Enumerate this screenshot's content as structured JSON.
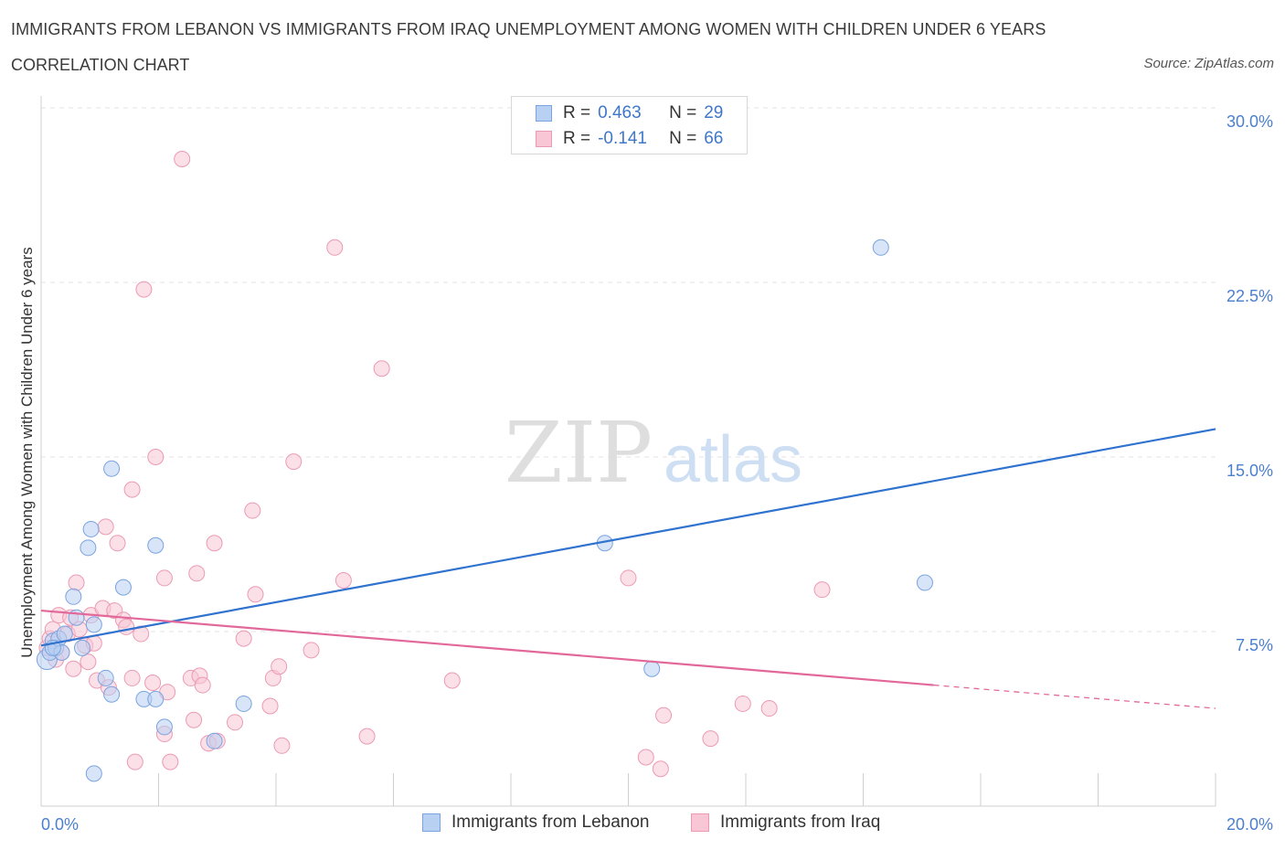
{
  "header": {
    "title": "IMMIGRANTS FROM LEBANON VS IMMIGRANTS FROM IRAQ UNEMPLOYMENT AMONG WOMEN WITH CHILDREN UNDER 6 YEARS",
    "subtitle": "CORRELATION CHART",
    "source": "Source: ZipAtlas.com"
  },
  "legend": {
    "rows": [
      {
        "r_label": "R = ",
        "r_value": "0.463",
        "n_label": "N = ",
        "n_value": "29"
      },
      {
        "r_label": "R = ",
        "r_value": "-0.141",
        "n_label": "N = ",
        "n_value": "66"
      }
    ],
    "bottom": [
      "Immigrants from Lebanon",
      "Immigrants from Iraq"
    ]
  },
  "watermark": {
    "zip": "ZIP",
    "atlas": "atlas"
  },
  "colors": {
    "lebanon_fill": "#b8d0f2",
    "lebanon_stroke": "#7aa3df",
    "lebanon_line": "#2f72cf",
    "iraq_fill": "#f8c6d5",
    "iraq_stroke": "#ec9ab3",
    "iraq_line": "#e3689a",
    "tick_blue": "#4b7fcf",
    "grid": "#e3e3e3"
  },
  "chart_data": {
    "type": "scatter",
    "title": "IMMIGRANTS FROM LEBANON VS IMMIGRANTS FROM IRAQ UNEMPLOYMENT AMONG WOMEN WITH CHILDREN UNDER 6 YEARS",
    "xlabel": "",
    "ylabel": "Unemployment Among Women with Children Under 6 years",
    "xlim": [
      0,
      20
    ],
    "ylim": [
      0,
      30
    ],
    "x_tick_labels": [
      "0.0%",
      "20.0%"
    ],
    "y_ticks": [
      7.5,
      15.0,
      22.5,
      30.0
    ],
    "y_tick_labels": [
      "7.5%",
      "15.0%",
      "22.5%",
      "30.0%"
    ],
    "series": [
      {
        "name": "Immigrants from Lebanon",
        "R": 0.463,
        "N": 29,
        "trend": {
          "x": [
            0,
            20
          ],
          "y": [
            6.9,
            16.2
          ]
        },
        "points": [
          [
            0.1,
            6.3
          ],
          [
            0.15,
            6.6
          ],
          [
            0.2,
            7.1
          ],
          [
            0.25,
            6.8
          ],
          [
            0.3,
            7.2
          ],
          [
            0.35,
            6.6
          ],
          [
            0.4,
            7.4
          ],
          [
            0.55,
            9.0
          ],
          [
            0.6,
            8.1
          ],
          [
            0.7,
            6.8
          ],
          [
            0.8,
            11.1
          ],
          [
            0.85,
            11.9
          ],
          [
            0.9,
            7.8
          ],
          [
            0.9,
            1.4
          ],
          [
            1.1,
            5.5
          ],
          [
            1.2,
            14.5
          ],
          [
            1.2,
            4.8
          ],
          [
            1.4,
            9.4
          ],
          [
            1.75,
            4.6
          ],
          [
            1.95,
            4.6
          ],
          [
            1.95,
            11.2
          ],
          [
            2.1,
            3.4
          ],
          [
            2.95,
            2.8
          ],
          [
            3.45,
            4.4
          ],
          [
            9.6,
            11.3
          ],
          [
            10.4,
            5.9
          ],
          [
            14.3,
            24.0
          ],
          [
            15.05,
            9.6
          ],
          [
            0.2,
            6.8
          ]
        ]
      },
      {
        "name": "Immigrants from Iraq",
        "R": -0.141,
        "N": 66,
        "trend": {
          "x": [
            0,
            15.2
          ],
          "y": [
            8.4,
            5.2
          ]
        },
        "trend_dashed": {
          "x": [
            15.2,
            20
          ],
          "y": [
            5.2,
            4.2
          ]
        },
        "points": [
          [
            0.1,
            6.8
          ],
          [
            0.15,
            7.2
          ],
          [
            0.2,
            7.6
          ],
          [
            0.25,
            6.3
          ],
          [
            0.3,
            8.2
          ],
          [
            0.35,
            6.6
          ],
          [
            0.45,
            7.4
          ],
          [
            0.5,
            8.1
          ],
          [
            0.6,
            9.6
          ],
          [
            0.65,
            7.6
          ],
          [
            0.75,
            6.9
          ],
          [
            0.8,
            6.2
          ],
          [
            0.85,
            8.2
          ],
          [
            0.9,
            7.0
          ],
          [
            0.95,
            5.4
          ],
          [
            1.05,
            8.5
          ],
          [
            1.1,
            12.0
          ],
          [
            1.15,
            5.1
          ],
          [
            1.25,
            8.4
          ],
          [
            1.3,
            11.3
          ],
          [
            1.4,
            8.0
          ],
          [
            1.45,
            7.7
          ],
          [
            1.55,
            13.6
          ],
          [
            1.55,
            5.5
          ],
          [
            1.6,
            1.9
          ],
          [
            1.7,
            7.4
          ],
          [
            1.75,
            22.2
          ],
          [
            1.9,
            5.3
          ],
          [
            1.95,
            15.0
          ],
          [
            2.1,
            9.8
          ],
          [
            2.1,
            3.1
          ],
          [
            2.15,
            4.9
          ],
          [
            2.2,
            1.9
          ],
          [
            2.4,
            27.8
          ],
          [
            2.55,
            5.5
          ],
          [
            2.6,
            3.7
          ],
          [
            2.65,
            10.0
          ],
          [
            2.7,
            5.6
          ],
          [
            2.75,
            5.2
          ],
          [
            2.85,
            2.7
          ],
          [
            2.95,
            11.3
          ],
          [
            3.0,
            2.8
          ],
          [
            3.3,
            3.6
          ],
          [
            3.45,
            7.2
          ],
          [
            3.6,
            12.7
          ],
          [
            3.65,
            9.1
          ],
          [
            3.9,
            4.3
          ],
          [
            3.95,
            5.5
          ],
          [
            4.05,
            6.0
          ],
          [
            4.1,
            2.6
          ],
          [
            4.3,
            14.8
          ],
          [
            4.6,
            6.7
          ],
          [
            5.0,
            24.0
          ],
          [
            5.15,
            9.7
          ],
          [
            5.55,
            3.0
          ],
          [
            5.8,
            18.8
          ],
          [
            7.0,
            5.4
          ],
          [
            10.0,
            9.8
          ],
          [
            10.3,
            2.1
          ],
          [
            10.55,
            1.6
          ],
          [
            10.6,
            3.9
          ],
          [
            11.4,
            2.9
          ],
          [
            11.95,
            4.4
          ],
          [
            12.4,
            4.2
          ],
          [
            13.3,
            9.3
          ],
          [
            0.55,
            5.9
          ]
        ]
      }
    ]
  }
}
